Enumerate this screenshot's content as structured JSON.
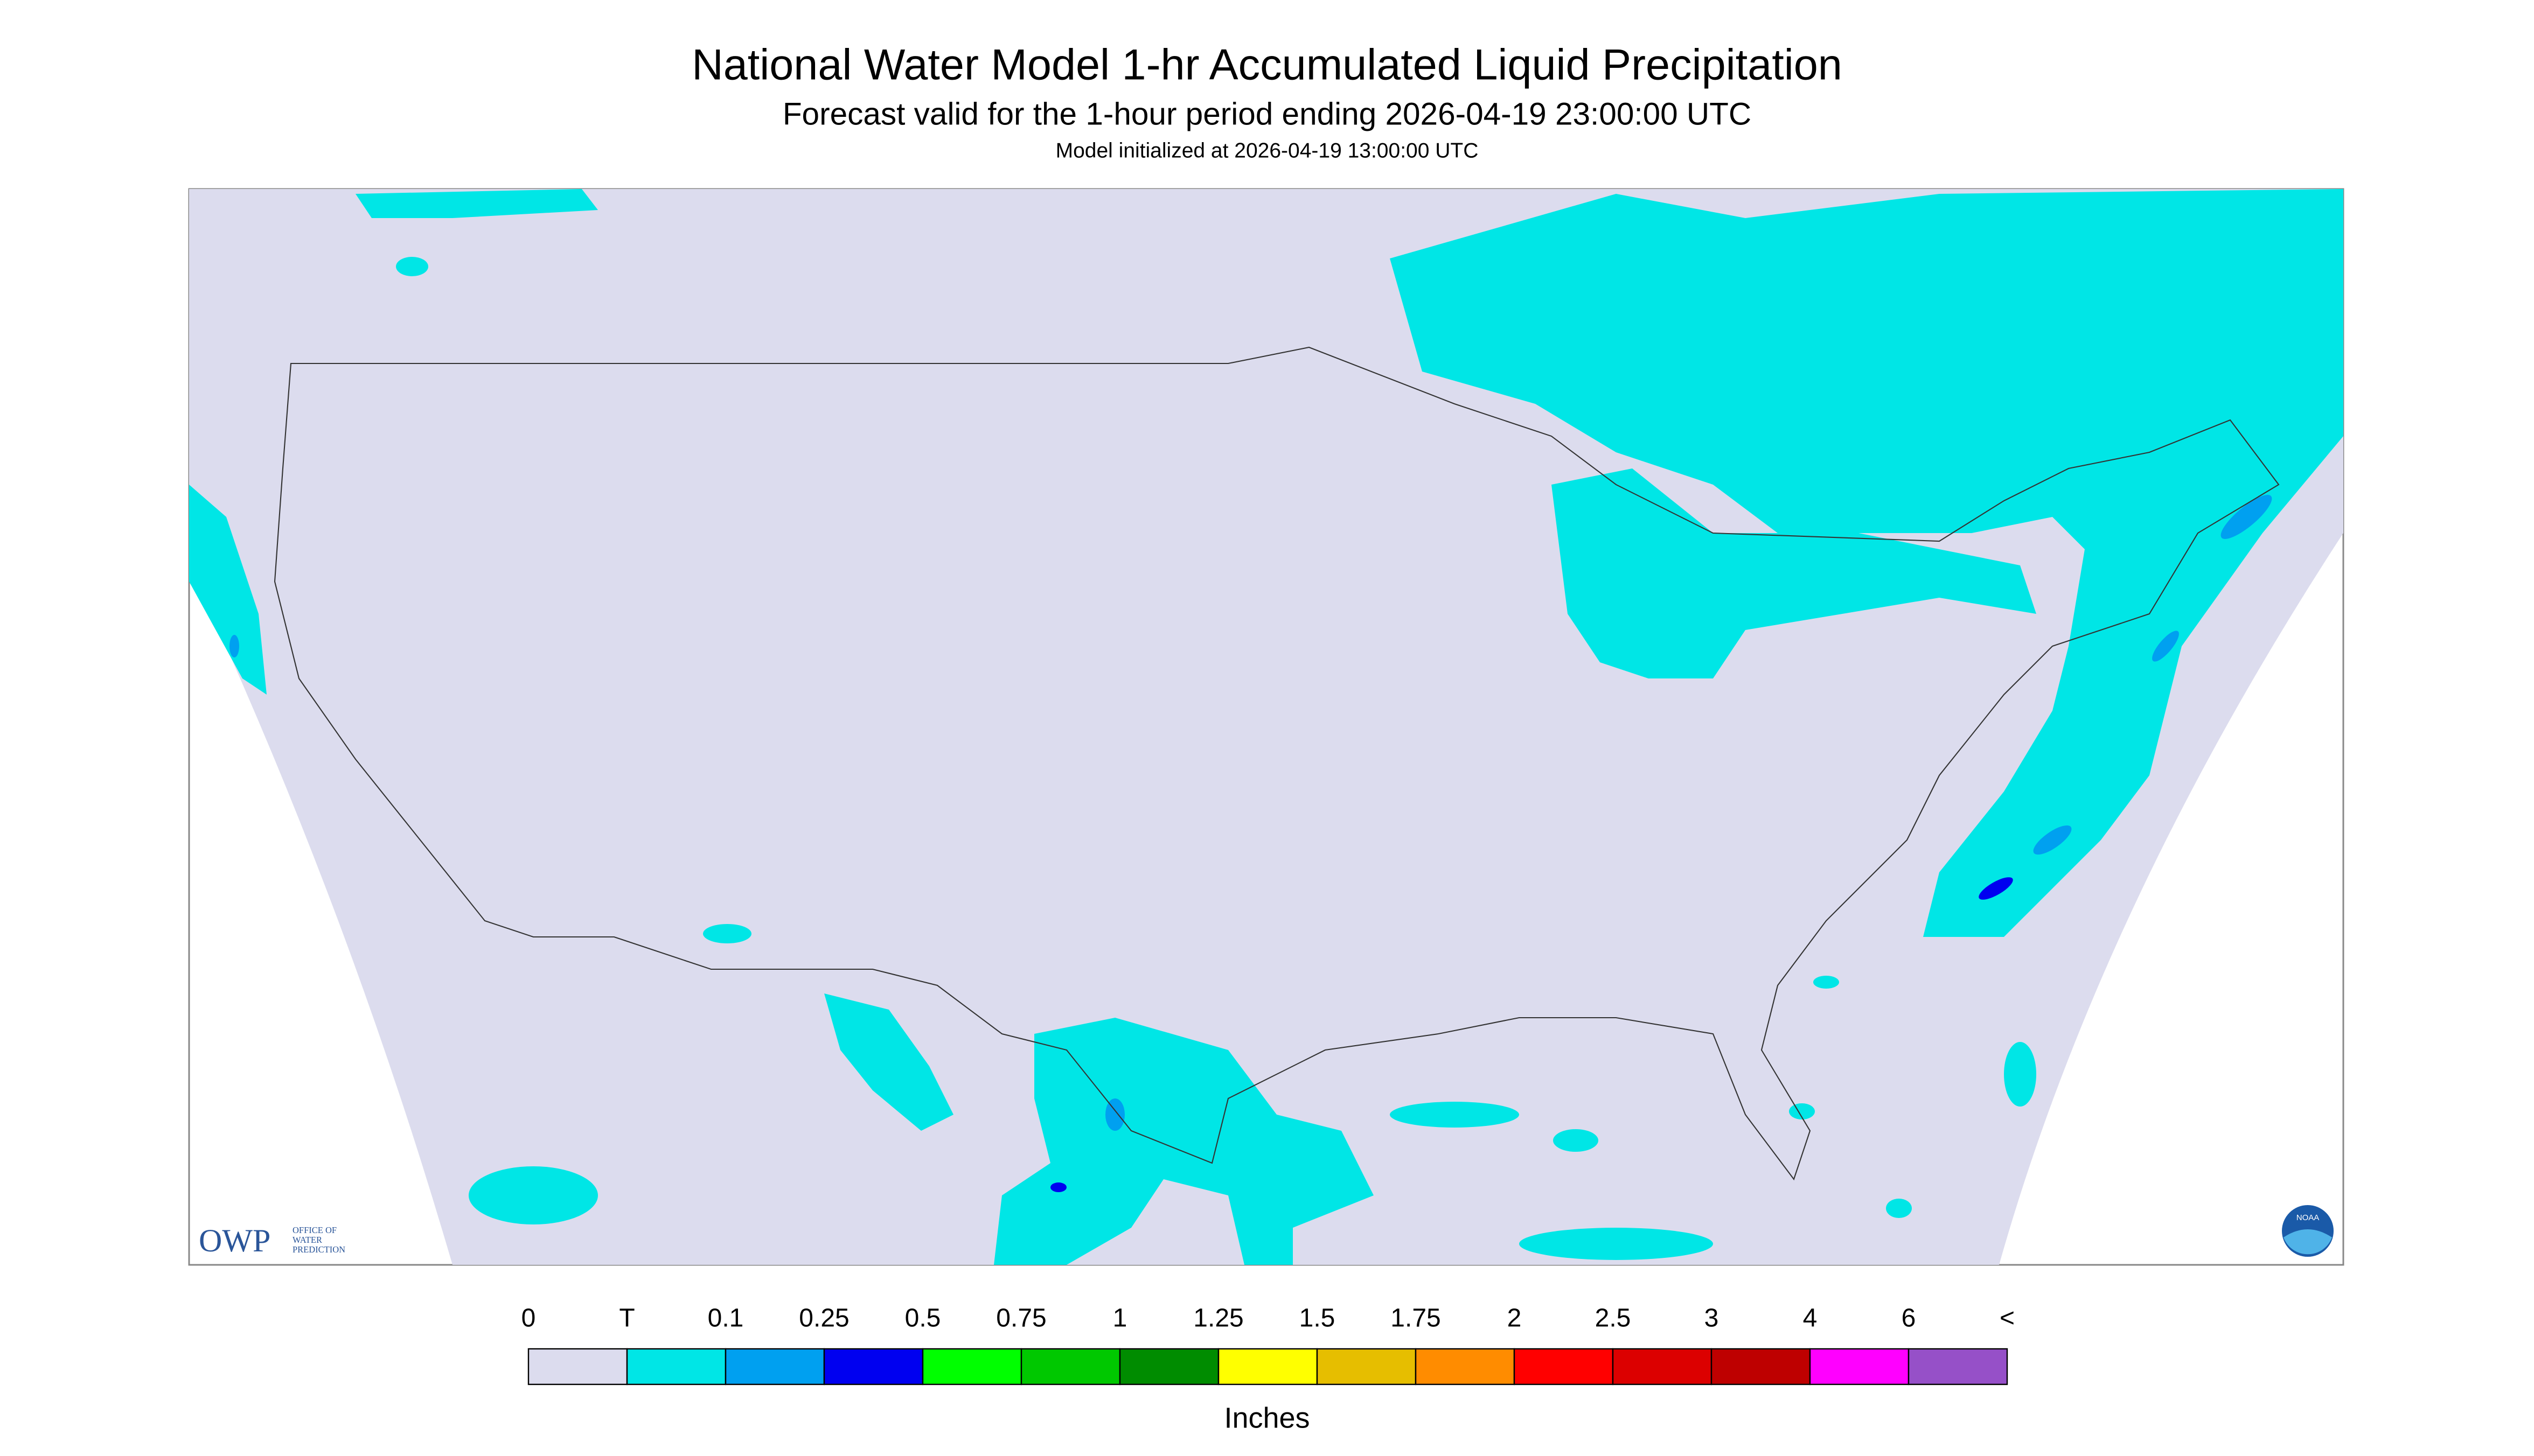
{
  "title": "National Water Model 1-hr Accumulated Liquid Precipitation",
  "subtitle": "Forecast valid for the 1-hour period ending 2026-04-19 23:00:00 UTC",
  "init": "Model initialized at 2026-04-19 13:00:00 UTC",
  "legend": {
    "labels": [
      "0",
      "T",
      "0.1",
      "0.25",
      "0.5",
      "0.75",
      "1",
      "1.25",
      "1.5",
      "1.75",
      "2",
      "2.5",
      "3",
      "4",
      "6",
      "<"
    ],
    "colors": [
      "#dcdcee",
      "#00e6e6",
      "#00a0f0",
      "#0000f0",
      "#00ff00",
      "#00c800",
      "#008c00",
      "#ffff00",
      "#e6be00",
      "#ff8c00",
      "#ff0000",
      "#dc0000",
      "#be0000",
      "#ff00ff",
      "#9650c8"
    ],
    "unit": "Inches"
  },
  "logos": {
    "owp": "OWP",
    "owp_text": [
      "OFFICE OF",
      "WATER",
      "PREDICTION"
    ],
    "noaa": "NOAA"
  }
}
